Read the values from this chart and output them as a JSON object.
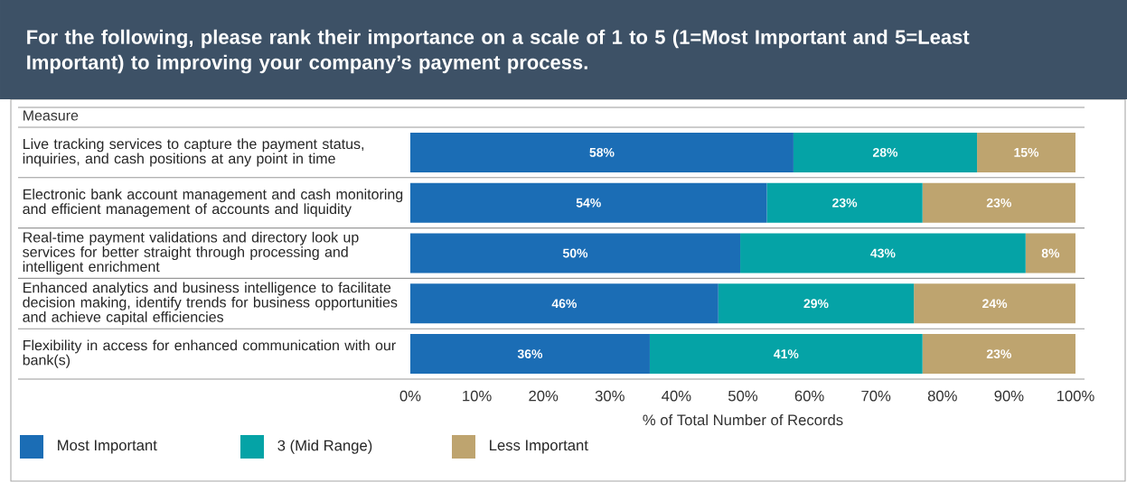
{
  "chart_data": {
    "type": "bar",
    "orientation": "horizontal",
    "stacked": true,
    "title": "For the following, please rank their importance on a scale of 1 to 5 (1=Most Important and 5=Least Important) to improving your company’s payment process.",
    "ylabel": "Measure",
    "xlabel": "% of Total Number of Records",
    "categories": [
      "Live tracking services to capture the payment status, inquiries, and cash positions at any point in time",
      "Electronic bank account management and cash monitoring and efficient management of accounts and liquidity",
      "Real-time payment validations and directory look up services for better straight through processing and intelligent enrichment",
      "Enhanced analytics and business intelligence to facilitate decision making, identify trends for business opportunities and achieve capital efficiencies",
      "Flexibility in access for enhanced communication with our bank(s)"
    ],
    "series": [
      {
        "name": "Most Important",
        "color": "#1b6db5",
        "values": [
          57.6,
          53.6,
          49.6,
          46.3,
          36.0
        ],
        "value_labels": [
          "58%",
          "54%",
          "50%",
          "46%",
          "36%"
        ]
      },
      {
        "name": "3 (Mid Range)",
        "color": "#05a3a6",
        "values": [
          27.6,
          23.4,
          42.9,
          29.4,
          41.0
        ],
        "value_labels": [
          "28%",
          "23%",
          "43%",
          "29%",
          "41%"
        ]
      },
      {
        "name": "Less Important",
        "color": "#bea46f",
        "values": [
          14.8,
          23.0,
          7.5,
          24.3,
          23.0
        ],
        "value_labels": [
          "15%",
          "23%",
          "8%",
          "24%",
          "23%"
        ]
      }
    ],
    "xlim": [
      0,
      100
    ],
    "xticks": [
      {
        "value": 0,
        "label": "0%"
      },
      {
        "value": 10,
        "label": "10%"
      },
      {
        "value": 20,
        "label": "20%"
      },
      {
        "value": 30,
        "label": "30%"
      },
      {
        "value": 40,
        "label": "40%"
      },
      {
        "value": 50,
        "label": "50%"
      },
      {
        "value": 60,
        "label": "60%"
      },
      {
        "value": 70,
        "label": "70%"
      },
      {
        "value": 80,
        "label": "80%"
      },
      {
        "value": 90,
        "label": "90%"
      },
      {
        "value": 100,
        "label": "100%"
      }
    ],
    "legend": "bottom left"
  }
}
